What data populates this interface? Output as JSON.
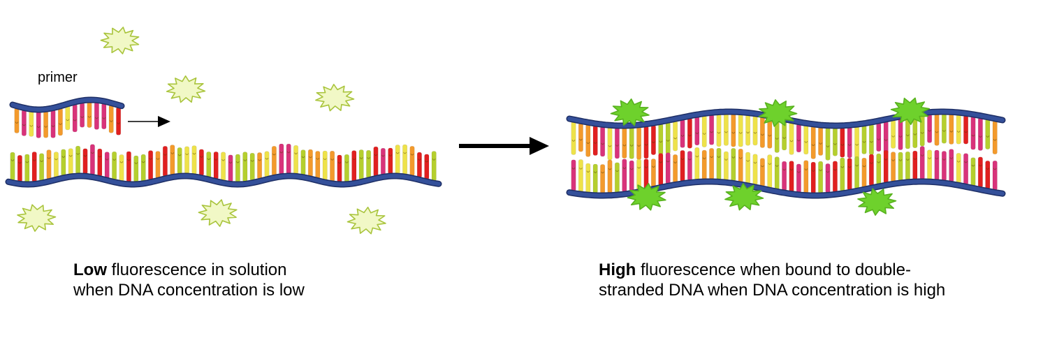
{
  "labels": {
    "primer": "primer"
  },
  "captions": {
    "left": {
      "bold": "Low",
      "line1_rest": " fluorescence in solution",
      "line2": "when DNA concentration is low"
    },
    "right": {
      "bold": "High",
      "line1_rest": " fluorescence when bound to double-",
      "line2": "stranded DNA when DNA concentration is high"
    }
  },
  "colors": {
    "backbone": "#34509a",
    "backbone_edge": "#1e2f66",
    "base_colors": [
      "#e02020",
      "#f39a2c",
      "#b5cf2e",
      "#eee24a",
      "#d8337a"
    ],
    "dye_unbound_fill": "#f1f8c6",
    "dye_unbound_stroke": "#a9c43c",
    "dye_bound_fill": "#6ed12c",
    "dye_bound_stroke": "#58b21e",
    "arrow": "#000000"
  },
  "icons": {
    "unbound_dye": "starburst-outline-icon",
    "bound_dye": "starburst-filled-icon",
    "arrow": "arrow-right-icon"
  }
}
